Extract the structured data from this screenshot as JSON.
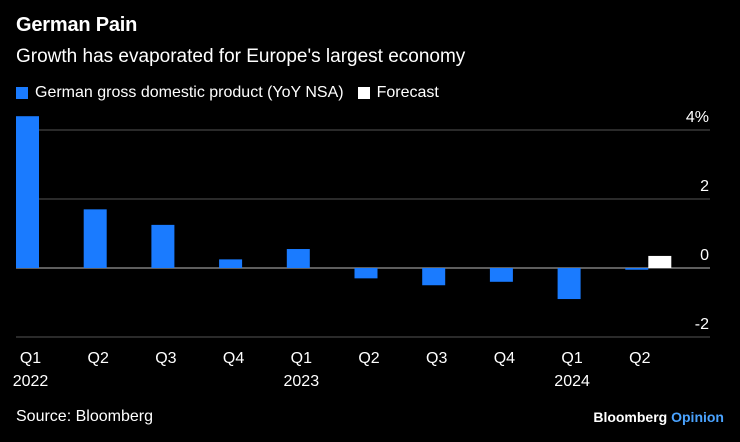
{
  "header": {
    "title": "German Pain",
    "subtitle": "Growth has evaporated for Europe's largest economy"
  },
  "legend": [
    {
      "label": "German gross domestic product (YoY NSA)",
      "color": "#1a7bff"
    },
    {
      "label": "Forecast",
      "color": "#ffffff"
    }
  ],
  "footer": {
    "source": "Source: Bloomberg",
    "brand_main": "Bloomberg",
    "brand_accent": "Opinion"
  },
  "chart_data": {
    "type": "bar",
    "categories": [
      "Q1",
      "Q2",
      "Q3",
      "Q4",
      "Q1",
      "Q2",
      "Q3",
      "Q4",
      "Q1",
      "Q2"
    ],
    "year_labels": [
      {
        "text": "2022",
        "index": 0
      },
      {
        "text": "2023",
        "index": 4
      },
      {
        "text": "2024",
        "index": 8
      }
    ],
    "series": [
      {
        "name": "German gross domestic product (YoY NSA)",
        "color": "#1a7bff",
        "values": [
          4.4,
          1.7,
          1.25,
          0.25,
          0.55,
          -0.3,
          -0.5,
          -0.4,
          -0.9,
          -0.05
        ]
      },
      {
        "name": "Forecast",
        "color": "#ffffff",
        "values": [
          null,
          null,
          null,
          null,
          null,
          null,
          null,
          null,
          null,
          0.35
        ]
      }
    ],
    "y_ticks": [
      4,
      2,
      0,
      -2
    ],
    "y_tick_labels": [
      "4%",
      "2",
      "0",
      "-2"
    ],
    "ylim": [
      -2,
      4.4
    ],
    "grid": true
  }
}
